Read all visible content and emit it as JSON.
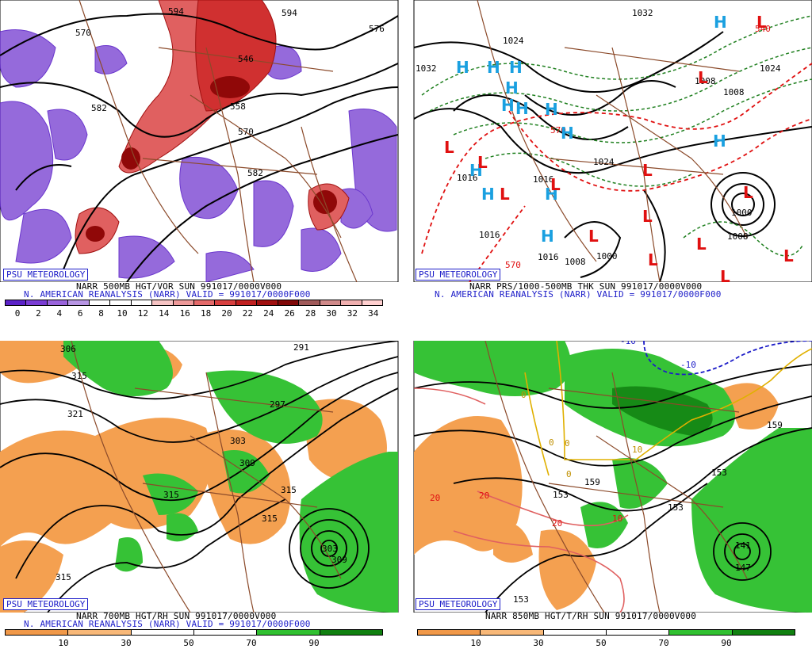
{
  "panels": [
    {
      "id": "vorticity",
      "psu": "PSU METEOROLOGY",
      "caption1": "NARR 500MB HGT/VOR SUN 991017/0000V000",
      "caption2": "N. AMERICAN REANALYSIS (NARR) VALID = 991017/0000F000",
      "colorbar": {
        "ticks": [
          "0",
          "2",
          "4",
          "6",
          "8",
          "10",
          "12",
          "14",
          "16",
          "18",
          "20",
          "22",
          "24",
          "26",
          "28",
          "30",
          "32",
          "34"
        ],
        "colors": [
          "#5b22c8",
          "#7a3cd4",
          "#9a64dc",
          "#b896e4",
          "#ffffff",
          "#ffffff",
          "#ffffff",
          "#f6c4c4",
          "#ee9a9a",
          "#e46a6a",
          "#d84040",
          "#c02020",
          "#a01010",
          "#800808",
          "#a05a5a",
          "#d08a8a",
          "#f0b0b0",
          "#ffd0d0"
        ]
      },
      "labels": [
        "570",
        "582",
        "594",
        "558",
        "546",
        "570",
        "582",
        "594",
        "576"
      ]
    },
    {
      "id": "mslp",
      "psu": "PSU METEOROLOGY",
      "caption1": "NARR PRS/1000-500MB THK SUN 991017/0000V000",
      "caption2": "N. AMERICAN REANALYSIS (NARR) VALID = 991017/0000F000",
      "labels": [
        "1032",
        "1032",
        "1024",
        "1024",
        "1024",
        "1008",
        "1008",
        "1016",
        "1016",
        "1016",
        "1008",
        "1000",
        "1000",
        "1008",
        "1024",
        "540",
        "570",
        "570"
      ],
      "highs": 12,
      "lows": 14
    },
    {
      "id": "rh700",
      "psu": "PSU METEOROLOGY",
      "caption1": "NARR 700MB HGT/RH SUN 991017/0000V000",
      "caption2": "N. AMERICAN REANALYSIS (NARR) VALID = 991017/0000F000",
      "colorbar": {
        "ticks": [
          "10",
          "30",
          "50",
          "70",
          "90"
        ],
        "colors": [
          "#f09848",
          "#f8b878",
          "#ffffff",
          "#ffffff",
          "#30c030",
          "#108010"
        ]
      },
      "labels": [
        "306",
        "315",
        "321",
        "315",
        "291",
        "297",
        "303",
        "309",
        "315",
        "315",
        "315",
        "303",
        "309",
        "315"
      ]
    },
    {
      "id": "rh850",
      "psu": "PSU METEOROLOGY",
      "caption1": "NARR 850MB HGT/T/RH SUN 991017/0000V000",
      "caption2": "",
      "colorbar": {
        "ticks": [
          "10",
          "30",
          "50",
          "70",
          "90"
        ],
        "colors": [
          "#f09848",
          "#f8b878",
          "#ffffff",
          "#ffffff",
          "#30c030",
          "#108010"
        ]
      },
      "labels": [
        "-10",
        "-10",
        "159",
        "153",
        "153",
        "153",
        "141",
        "147",
        "153",
        "159",
        "0",
        "0",
        "0",
        "0",
        "10",
        "20",
        "20",
        "20",
        "10"
      ]
    }
  ]
}
